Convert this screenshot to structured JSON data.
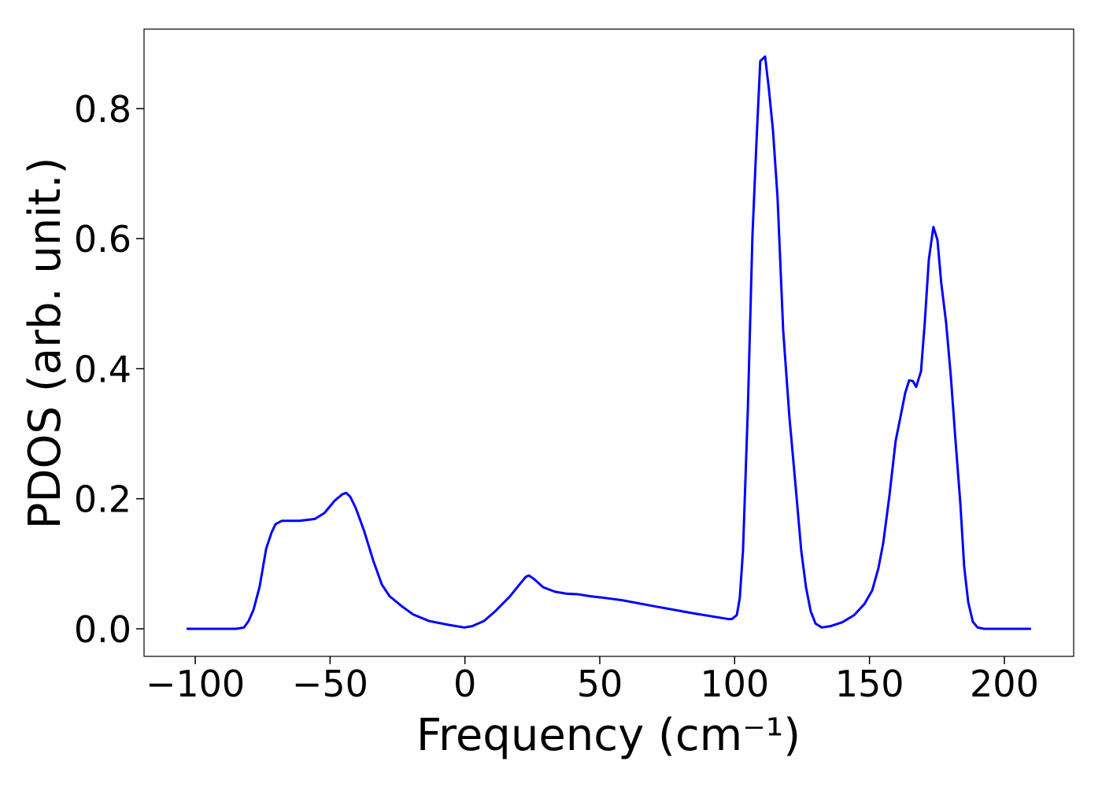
{
  "chart_data": {
    "type": "line",
    "x_label": "Frequency (cm⁻¹)",
    "y_label": "PDOS (arb. unit.)",
    "color": "#0000ff",
    "x": [
      -103.2,
      -84.8,
      -81.9,
      -80.2,
      -78.4,
      -76.1,
      -73.7,
      -71.7,
      -70.2,
      -67.9,
      -61.5,
      -55.6,
      -52.1,
      -48.3,
      -45.4,
      -44.0,
      -42.5,
      -40.5,
      -37.5,
      -34.0,
      -30.8,
      -27.9,
      -23.5,
      -19.2,
      -13.3,
      -6.0,
      -0.2,
      2.7,
      7.1,
      11.5,
      16.7,
      20.2,
      22.6,
      23.7,
      25.5,
      29.0,
      33.4,
      37.7,
      42.1,
      46.5,
      50.9,
      58.2,
      69.8,
      84.4,
      97.6,
      99.0,
      100.8,
      101.9,
      103.1,
      104.9,
      106.6,
      108.1,
      109.5,
      111.3,
      112.7,
      114.2,
      115.9,
      118.0,
      120.3,
      122.4,
      124.7,
      126.5,
      128.2,
      130.0,
      132.3,
      135.5,
      139.9,
      144.3,
      148.1,
      151.0,
      153.3,
      155.1,
      157.4,
      159.7,
      161.5,
      163.2,
      164.7,
      166.1,
      167.3,
      169.1,
      170.5,
      172.0,
      173.7,
      175.2,
      176.6,
      178.4,
      180.2,
      181.9,
      183.7,
      185.1,
      186.6,
      188.3,
      190.1,
      192.4,
      209.9
    ],
    "values": [
      0,
      0,
      0.002,
      0.012,
      0.029,
      0.065,
      0.123,
      0.148,
      0.161,
      0.166,
      0.166,
      0.169,
      0.178,
      0.197,
      0.207,
      0.209,
      0.203,
      0.186,
      0.152,
      0.105,
      0.068,
      0.05,
      0.035,
      0.022,
      0.012,
      0.006,
      0.002,
      0.004,
      0.012,
      0.028,
      0.05,
      0.068,
      0.08,
      0.082,
      0.077,
      0.064,
      0.057,
      0.054,
      0.053,
      0.05,
      0.048,
      0.044,
      0.035,
      0.024,
      0.015,
      0.015,
      0.021,
      0.047,
      0.12,
      0.338,
      0.604,
      0.749,
      0.873,
      0.88,
      0.83,
      0.767,
      0.664,
      0.459,
      0.326,
      0.229,
      0.12,
      0.063,
      0.027,
      0.008,
      0.002,
      0.004,
      0.01,
      0.021,
      0.038,
      0.059,
      0.093,
      0.132,
      0.205,
      0.289,
      0.326,
      0.362,
      0.382,
      0.381,
      0.372,
      0.396,
      0.471,
      0.568,
      0.618,
      0.598,
      0.532,
      0.471,
      0.386,
      0.289,
      0.192,
      0.096,
      0.041,
      0.011,
      0.002,
      0,
      0
    ],
    "xlim": [
      -118.97,
      225.7
    ],
    "ylim": [
      -0.0424,
      0.9222
    ],
    "xticks": [
      {
        "value": -100,
        "label": "−100"
      },
      {
        "value": -50,
        "label": "−50"
      },
      0,
      50,
      100,
      150,
      200
    ],
    "yticks": [
      {
        "value": 0,
        "label": "0.0"
      },
      0.2,
      0.4,
      0.6,
      0.8
    ]
  }
}
